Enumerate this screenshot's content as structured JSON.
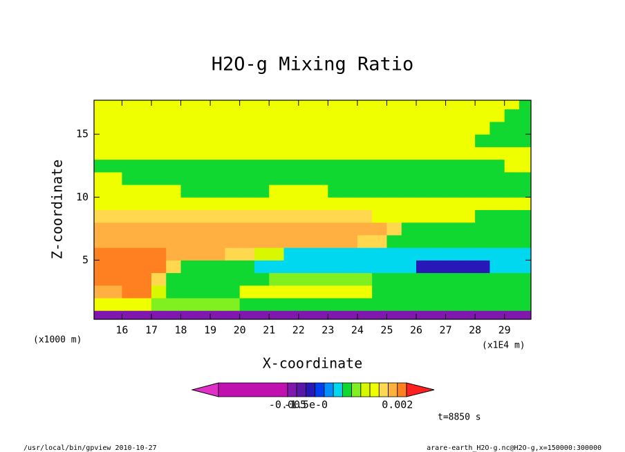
{
  "chart_data": {
    "type": "contour",
    "title": "H2O-g Mixing Ratio",
    "x_label": "X-coordinate",
    "y_label": "Z-coordinate",
    "x_unit": "(x1E4 m)",
    "y_unit": "(x1000 m)",
    "time_label": "t=8850 s",
    "footer_left": "/usr/local/bin/gpview  2010-10-27",
    "footer_right": "arare-earth_H2O-g.nc@H2O-g,x=150000:300000",
    "xlim": [
      15.05,
      29.9
    ],
    "ylim": [
      0.3,
      17.7
    ],
    "xticks": [
      16,
      17,
      18,
      19,
      20,
      21,
      22,
      23,
      24,
      25,
      26,
      27,
      28,
      29
    ],
    "yticks": [
      5,
      10,
      15
    ],
    "x": [
      15.25,
      15.75,
      16.25,
      16.75,
      17.25,
      17.75,
      18.25,
      18.75,
      19.25,
      19.75,
      20.25,
      20.75,
      21.25,
      21.75,
      22.25,
      22.75,
      23.25,
      23.75,
      24.25,
      24.75,
      25.25,
      25.75,
      26.25,
      26.75,
      27.25,
      27.75,
      28.25,
      28.75,
      29.25,
      29.75
    ],
    "y": [
      0.5,
      1.5,
      2.5,
      3.5,
      4.5,
      5.5,
      6.5,
      7.5,
      8.5,
      9.5,
      10.5,
      11.5,
      12.5,
      13.5,
      14.5,
      15.5,
      16.5,
      17.5
    ],
    "z": [
      [
        -0.004,
        -0.004,
        -0.004,
        -0.004,
        -0.004,
        -0.004,
        -0.004,
        -0.004,
        -0.004,
        -0.004,
        -0.004,
        -0.004,
        -0.004,
        -0.004,
        -0.004,
        -0.004,
        -0.004,
        -0.004,
        -0.004,
        -0.004,
        -0.004,
        -0.004,
        -0.004,
        -0.004,
        -0.004,
        -0.004,
        -0.004,
        -0.004,
        -0.004,
        -0.004
      ],
      [
        0.0009,
        0.0009,
        0.0009,
        0.0009,
        0.0003,
        0.0003,
        0.0003,
        0.0003,
        0.0003,
        0.0003,
        0.0001,
        0.0001,
        0.0001,
        0.0001,
        0.0001,
        0.0001,
        0.0001,
        0.0001,
        0.0001,
        0.0001,
        0.0001,
        0.0001,
        0.0001,
        0.0001,
        0.0001,
        0.0001,
        0.0001,
        0.0001,
        0.0001,
        0.0001
      ],
      [
        0.0018,
        0.0018,
        0.0025,
        0.0025,
        0.0006,
        0.0001,
        0.0001,
        0.0001,
        0.0001,
        0.0001,
        0.0009,
        0.0009,
        0.0009,
        0.0009,
        0.0009,
        0.0009,
        0.0009,
        0.0009,
        0.0009,
        0.0001,
        0.0001,
        0.0001,
        0.0001,
        0.0001,
        0.0001,
        0.0001,
        0.0001,
        0.0001,
        0.0001,
        0.0001
      ],
      [
        0.0025,
        0.0025,
        0.0025,
        0.0025,
        0.0012,
        0.0001,
        0.0001,
        0.0001,
        0.0001,
        0.0001,
        0.0001,
        0.0001,
        0.0003,
        0.0003,
        0.0003,
        0.0003,
        0.0003,
        0.0003,
        0.0003,
        0.0001,
        0.0001,
        0.0001,
        0.0001,
        0.0001,
        0.0001,
        0.0001,
        0.0001,
        0.0001,
        0.0001,
        0.0001
      ],
      [
        0.0025,
        0.0025,
        0.0025,
        0.0025,
        0.0025,
        0.0012,
        0.0001,
        0.0001,
        0.0001,
        0.0001,
        0.0001,
        -0.0001,
        -0.0001,
        -0.0001,
        -0.0001,
        -0.0001,
        -0.0001,
        -0.0001,
        -0.0001,
        -0.0001,
        -0.0001,
        -0.0001,
        -0.0012,
        -0.0012,
        -0.0012,
        -0.0012,
        -0.0012,
        -0.0001,
        -0.0001,
        -0.0001
      ],
      [
        0.0025,
        0.0025,
        0.0025,
        0.0025,
        0.0025,
        0.0018,
        0.0018,
        0.0018,
        0.0018,
        0.0012,
        0.0012,
        0.0006,
        0.0006,
        -0.0001,
        -0.0001,
        -0.0001,
        -0.0001,
        -0.0001,
        -0.0001,
        -0.0001,
        -0.0001,
        -0.0001,
        -0.0001,
        -0.0001,
        -0.0001,
        -0.0001,
        -0.0001,
        -0.0001,
        -0.0001,
        -0.0001
      ],
      [
        0.0018,
        0.0018,
        0.0018,
        0.0018,
        0.0018,
        0.0018,
        0.0018,
        0.0018,
        0.0018,
        0.0018,
        0.0018,
        0.0018,
        0.0018,
        0.0018,
        0.0018,
        0.0018,
        0.0018,
        0.0018,
        0.0012,
        0.0012,
        0.0001,
        0.0001,
        0.0001,
        0.0001,
        0.0001,
        0.0001,
        0.0001,
        0.0001,
        0.0001,
        0.0001
      ],
      [
        0.0018,
        0.0018,
        0.0018,
        0.0018,
        0.0018,
        0.0018,
        0.0018,
        0.0018,
        0.0018,
        0.0018,
        0.0018,
        0.0018,
        0.0018,
        0.0018,
        0.0018,
        0.0018,
        0.0018,
        0.0018,
        0.0018,
        0.0018,
        0.0012,
        0.0001,
        0.0001,
        0.0001,
        0.0001,
        0.0001,
        0.0001,
        0.0001,
        0.0001,
        0.0001
      ],
      [
        0.0012,
        0.0012,
        0.0012,
        0.0012,
        0.0012,
        0.0012,
        0.0012,
        0.0012,
        0.0012,
        0.0012,
        0.0012,
        0.0012,
        0.0012,
        0.0012,
        0.0012,
        0.0012,
        0.0012,
        0.0012,
        0.0012,
        0.0009,
        0.0009,
        0.0009,
        0.0009,
        0.0009,
        0.0009,
        0.0009,
        0.0001,
        0.0001,
        0.0001,
        0.0001
      ],
      [
        0.0009,
        0.0009,
        0.0009,
        0.0009,
        0.0009,
        0.0009,
        0.0009,
        0.0009,
        0.0009,
        0.0009,
        0.0009,
        0.0009,
        0.0009,
        0.0009,
        0.0009,
        0.0009,
        0.0009,
        0.0009,
        0.0009,
        0.0009,
        0.0009,
        0.0009,
        0.0009,
        0.0009,
        0.0009,
        0.0009,
        0.0009,
        0.0009,
        0.0009,
        0.0009
      ],
      [
        0.0009,
        0.0009,
        0.0009,
        0.0009,
        0.0009,
        0.0009,
        0.0001,
        0.0001,
        0.0001,
        0.0001,
        0.0001,
        0.0001,
        0.0009,
        0.0009,
        0.0009,
        0.0009,
        0.0001,
        0.0001,
        0.0001,
        0.0001,
        0.0001,
        0.0001,
        0.0001,
        0.0001,
        0.0001,
        0.0001,
        0.0001,
        0.0001,
        0.0001,
        0.0001
      ],
      [
        0.0009,
        0.0009,
        0.0001,
        0.0001,
        0.0001,
        0.0001,
        0.0001,
        0.0001,
        0.0001,
        0.0001,
        0.0001,
        0.0001,
        0.0001,
        0.0001,
        0.0001,
        0.0001,
        0.0001,
        0.0001,
        0.0001,
        0.0001,
        0.0001,
        0.0001,
        0.0001,
        0.0001,
        0.0001,
        0.0001,
        0.0001,
        0.0001,
        0.0001,
        0.0001
      ],
      [
        0.0001,
        0.0001,
        0.0001,
        0.0001,
        0.0001,
        0.0001,
        0.0001,
        0.0001,
        0.0001,
        0.0001,
        0.0001,
        0.0001,
        0.0001,
        0.0001,
        0.0001,
        0.0001,
        0.0001,
        0.0001,
        0.0001,
        0.0001,
        0.0001,
        0.0001,
        0.0001,
        0.0001,
        0.0001,
        0.0001,
        0.0001,
        0.0001,
        0.0009,
        0.0009
      ],
      [
        0.0009,
        0.0009,
        0.0009,
        0.0009,
        0.0009,
        0.0009,
        0.0009,
        0.0009,
        0.0009,
        0.0009,
        0.0009,
        0.0009,
        0.0009,
        0.0009,
        0.0009,
        0.0009,
        0.0009,
        0.0009,
        0.0009,
        0.0009,
        0.0009,
        0.0009,
        0.0009,
        0.0009,
        0.0009,
        0.0009,
        0.0009,
        0.0009,
        0.0009,
        0.0009
      ],
      [
        0.0009,
        0.0009,
        0.0009,
        0.0009,
        0.0009,
        0.0009,
        0.0009,
        0.0009,
        0.0009,
        0.0009,
        0.0009,
        0.0009,
        0.0009,
        0.0009,
        0.0009,
        0.0009,
        0.0009,
        0.0009,
        0.0009,
        0.0009,
        0.0009,
        0.0009,
        0.0009,
        0.0009,
        0.0009,
        0.0009,
        0.0001,
        0.0001,
        0.0001,
        0.0001
      ],
      [
        0.0009,
        0.0009,
        0.0009,
        0.0009,
        0.0009,
        0.0009,
        0.0009,
        0.0009,
        0.0009,
        0.0009,
        0.0009,
        0.0009,
        0.0009,
        0.0009,
        0.0009,
        0.0009,
        0.0009,
        0.0009,
        0.0009,
        0.0009,
        0.0009,
        0.0009,
        0.0009,
        0.0009,
        0.0009,
        0.0009,
        0.0009,
        0.0001,
        0.0001,
        0.0001
      ],
      [
        0.0009,
        0.0009,
        0.0009,
        0.0009,
        0.0009,
        0.0009,
        0.0009,
        0.0009,
        0.0009,
        0.0009,
        0.0009,
        0.0009,
        0.0009,
        0.0009,
        0.0009,
        0.0009,
        0.0009,
        0.0009,
        0.0009,
        0.0009,
        0.0009,
        0.0009,
        0.0009,
        0.0009,
        0.0009,
        0.0009,
        0.0009,
        0.0009,
        0.0001,
        0.0001
      ],
      [
        0.0009,
        0.0009,
        0.0009,
        0.0009,
        0.0009,
        0.0009,
        0.0009,
        0.0009,
        0.0009,
        0.0009,
        0.0009,
        0.0009,
        0.0009,
        0.0009,
        0.0009,
        0.0009,
        0.0009,
        0.0009,
        0.0009,
        0.0009,
        0.0009,
        0.0009,
        0.0009,
        0.0009,
        0.0009,
        0.0009,
        0.0009,
        0.0009,
        0.0009,
        0.0001
      ]
    ],
    "colorbar": {
      "levels": [
        -0.01,
        -0.005,
        -0.003,
        -0.0015,
        -0.001,
        -0.0005,
        -0.0002,
        0,
        0.0002,
        0.0005,
        0.0008,
        0.001,
        0.0015,
        0.002,
        0.003
      ],
      "colors": [
        "#e030c8",
        "#c010b0",
        "#8018b0",
        "#5a18a8",
        "#2818b8",
        "#0040f0",
        "#0090ff",
        "#00d8f0",
        "#10d830",
        "#80f020",
        "#d8f800",
        "#f0ff00",
        "#ffd850",
        "#ffb040",
        "#ff8020",
        "#ff2020"
      ],
      "ticks": [
        -0.005,
        {
          "value": -0.0015,
          "label": "-1.5e-0"
        },
        0.002
      ]
    }
  }
}
